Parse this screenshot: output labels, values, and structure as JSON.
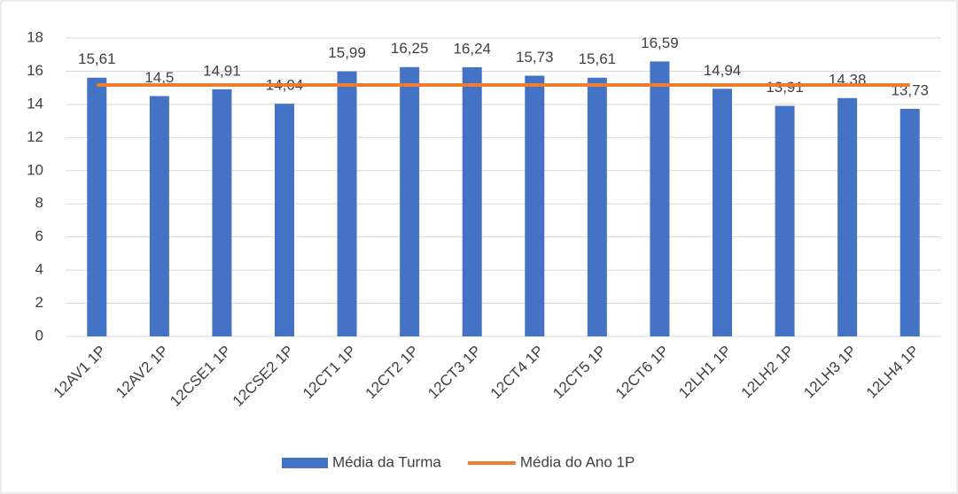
{
  "chart_data": {
    "type": "bar",
    "categories": [
      "12AV1 1P",
      "12AV2 1P",
      "12CSE1 1P",
      "12CSE2 1P",
      "12CT1 1P",
      "12CT2 1P",
      "12CT3 1P",
      "12CT4 1P",
      "12CT5 1P",
      "12CT6 1P",
      "12LH1 1P",
      "12LH2 1P",
      "12LH3 1P",
      "12LH4 1P"
    ],
    "series": [
      {
        "name": "Média da Turma",
        "type": "bar",
        "color": "#4472c4",
        "values": [
          15.61,
          14.5,
          14.91,
          14.04,
          15.99,
          16.25,
          16.24,
          15.73,
          15.61,
          16.59,
          14.94,
          13.91,
          14.38,
          13.73
        ],
        "value_labels": [
          "15,61",
          "14,5",
          "14,91",
          "14,04",
          "15,99",
          "16,25",
          "16,24",
          "15,73",
          "15,61",
          "16,59",
          "14,94",
          "13,91",
          "14,38",
          "13,73"
        ]
      },
      {
        "name": "Média do Ano 1P",
        "type": "line",
        "color": "#ed7d31",
        "values": [
          15.17,
          15.17,
          15.17,
          15.17,
          15.17,
          15.17,
          15.17,
          15.17,
          15.17,
          15.17,
          15.17,
          15.17,
          15.17,
          15.17
        ]
      }
    ],
    "ylim": [
      0,
      18
    ],
    "yticks": [
      0,
      2,
      4,
      6,
      8,
      10,
      12,
      14,
      16,
      18
    ],
    "grid": true,
    "legend": "bottom"
  }
}
